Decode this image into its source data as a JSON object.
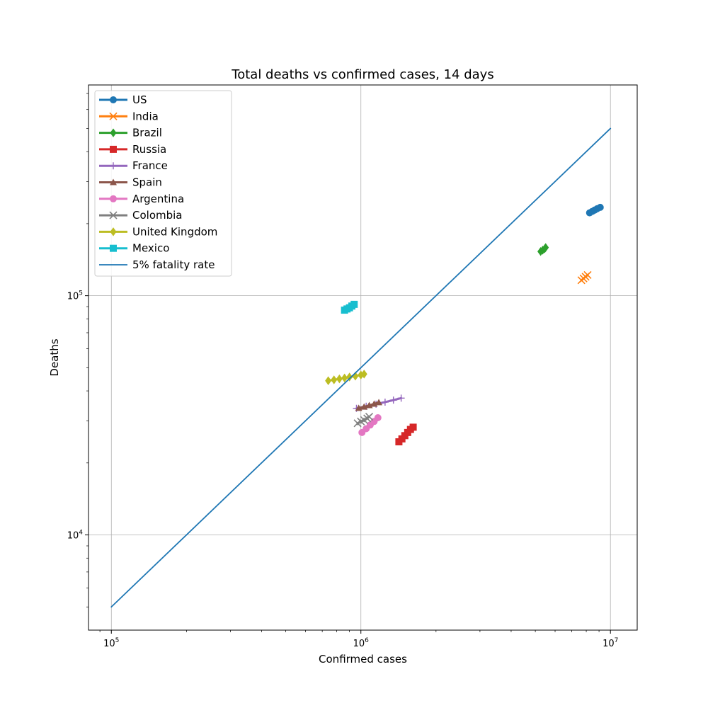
{
  "chart_data": {
    "type": "line",
    "title": "Total deaths vs confirmed cases, 14 days",
    "xlabel": "Confirmed cases",
    "ylabel": "Deaths",
    "xscale": "log",
    "yscale": "log",
    "xlim": [
      81000,
      12800000
    ],
    "ylim": [
      4000,
      760000
    ],
    "grid": true,
    "legend_position": "top-left",
    "xticks": [
      {
        "value": 100000,
        "base": "10",
        "exp": "5"
      },
      {
        "value": 1000000,
        "base": "10",
        "exp": "6"
      },
      {
        "value": 10000000,
        "base": "10",
        "exp": "7"
      }
    ],
    "yticks": [
      {
        "value": 10000,
        "base": "10",
        "exp": "4"
      },
      {
        "value": 100000,
        "base": "10",
        "exp": "5"
      }
    ],
    "series": [
      {
        "name": "US",
        "color": "#1f77b4",
        "marker": "circle",
        "x": [
          8250000,
          8450000,
          8650000,
          8850000,
          9100000
        ],
        "y": [
          222000,
          225000,
          228000,
          231000,
          234000
        ]
      },
      {
        "name": "India",
        "color": "#ff7f0e",
        "marker": "x",
        "x": [
          7650000,
          7800000,
          7950000,
          8100000
        ],
        "y": [
          116000,
          118000,
          120000,
          122000
        ]
      },
      {
        "name": "Brazil",
        "color": "#2ca02c",
        "marker": "diamond",
        "x": [
          5250000,
          5350000,
          5450000,
          5500000
        ],
        "y": [
          153000,
          155000,
          157000,
          159000
        ]
      },
      {
        "name": "Russia",
        "color": "#d62728",
        "marker": "square",
        "x": [
          1420000,
          1460000,
          1500000,
          1540000,
          1580000,
          1620000
        ],
        "y": [
          24500,
          25200,
          26000,
          26800,
          27600,
          28200
        ]
      },
      {
        "name": "France",
        "color": "#9467bd",
        "marker": "plus",
        "x": [
          960000,
          1050000,
          1150000,
          1250000,
          1350000,
          1450000
        ],
        "y": [
          33800,
          34500,
          35200,
          35900,
          36600,
          37300
        ]
      },
      {
        "name": "Spain",
        "color": "#8c564b",
        "marker": "triangle",
        "x": [
          980000,
          1030000,
          1080000,
          1130000,
          1180000
        ],
        "y": [
          33900,
          34300,
          34800,
          35300,
          35800
        ]
      },
      {
        "name": "Argentina",
        "color": "#e377c2",
        "marker": "circle",
        "x": [
          1010000,
          1050000,
          1090000,
          1130000,
          1170000
        ],
        "y": [
          26800,
          27800,
          28800,
          29800,
          30900
        ]
      },
      {
        "name": "Colombia",
        "color": "#7f7f7f",
        "marker": "x",
        "x": [
          970000,
          1000000,
          1030000,
          1060000,
          1080000
        ],
        "y": [
          29300,
          29800,
          30200,
          30700,
          31200
        ]
      },
      {
        "name": "United Kingdom",
        "color": "#bcbd22",
        "marker": "diamond",
        "x": [
          740000,
          780000,
          820000,
          860000,
          900000,
          950000,
          1000000,
          1030000
        ],
        "y": [
          44100,
          44500,
          44900,
          45300,
          45700,
          46100,
          46600,
          47000
        ]
      },
      {
        "name": "Mexico",
        "color": "#17becf",
        "marker": "square",
        "x": [
          860000,
          880000,
          900000,
          920000,
          940000
        ],
        "y": [
          87000,
          88000,
          89000,
          90500,
          92000
        ]
      },
      {
        "name": "5% fatality rate",
        "color": "#1f77b4",
        "marker": "none",
        "x": [
          100000,
          10000000
        ],
        "y": [
          5000,
          500000
        ]
      }
    ]
  }
}
